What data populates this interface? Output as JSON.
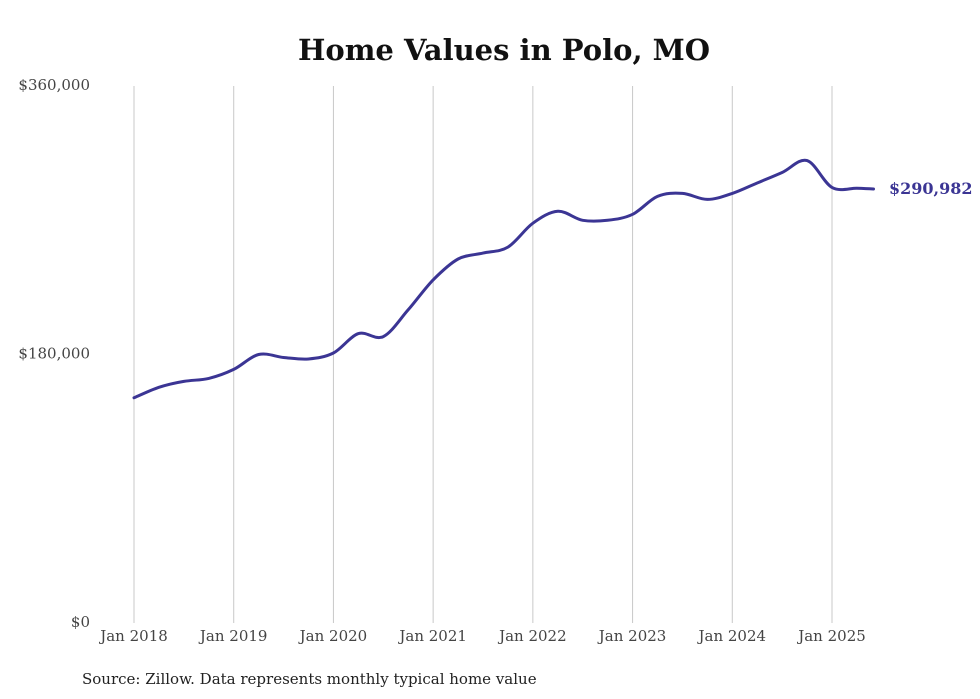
{
  "chart_data": {
    "type": "line",
    "title": "Home Values in Polo, MO",
    "xlabel": "",
    "ylabel": "",
    "ylim": [
      0,
      360000
    ],
    "yticks": [
      {
        "value": 0,
        "label": "$0"
      },
      {
        "value": 180000,
        "label": "$180,000"
      },
      {
        "value": 360000,
        "label": "$360,000"
      }
    ],
    "xticks": [
      {
        "value": "2018-01",
        "label": "Jan 2018"
      },
      {
        "value": "2019-01",
        "label": "Jan 2019"
      },
      {
        "value": "2020-01",
        "label": "Jan 2020"
      },
      {
        "value": "2021-01",
        "label": "Jan 2021"
      },
      {
        "value": "2022-01",
        "label": "Jan 2022"
      },
      {
        "value": "2023-01",
        "label": "Jan 2023"
      },
      {
        "value": "2024-01",
        "label": "Jan 2024"
      },
      {
        "value": "2025-01",
        "label": "Jan 2025"
      }
    ],
    "grid": {
      "x": true,
      "y": false
    },
    "line_color": "#3b3594",
    "series": [
      {
        "x": [
          "2018-01",
          "2018-04",
          "2018-07",
          "2018-10",
          "2019-01",
          "2019-04",
          "2019-07",
          "2019-10",
          "2020-01",
          "2020-04",
          "2020-07",
          "2020-10",
          "2021-01",
          "2021-04",
          "2021-07",
          "2021-10",
          "2022-01",
          "2022-04",
          "2022-07",
          "2022-10",
          "2023-01",
          "2023-04",
          "2023-07",
          "2023-10",
          "2024-01",
          "2024-04",
          "2024-07",
          "2024-10",
          "2025-01",
          "2025-04",
          "2025-06"
        ],
        "values": [
          151000,
          158000,
          162000,
          164000,
          170000,
          180000,
          178000,
          177000,
          181000,
          194000,
          192000,
          210000,
          230000,
          244000,
          248000,
          252000,
          268000,
          276000,
          270000,
          270000,
          274000,
          286000,
          288000,
          284000,
          288000,
          295000,
          302000,
          310000,
          292000,
          291500,
          290982
        ]
      }
    ],
    "end_label": "$290,982",
    "source": "Source: Zillow. Data represents monthly typical home value"
  }
}
